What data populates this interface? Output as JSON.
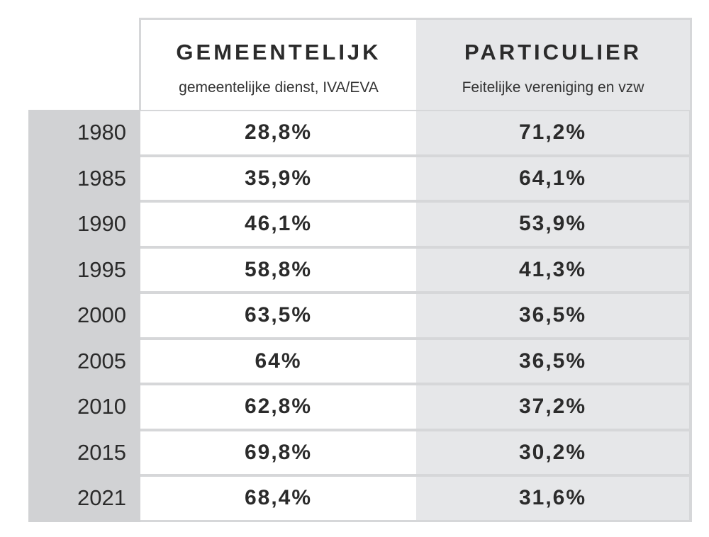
{
  "chart_data": {
    "type": "table",
    "columns": [
      {
        "title": "GEMEENTELIJK",
        "subtitle": "gemeentelijke dienst, IVA/EVA"
      },
      {
        "title": "PARTICULIER",
        "subtitle": "Feitelijke vereniging en vzw"
      }
    ],
    "rows": [
      {
        "year": "1980",
        "gemeentelijk": "28,8%",
        "particulier": "71,2%"
      },
      {
        "year": "1985",
        "gemeentelijk": "35,9%",
        "particulier": "64,1%"
      },
      {
        "year": "1990",
        "gemeentelijk": "46,1%",
        "particulier": "53,9%"
      },
      {
        "year": "1995",
        "gemeentelijk": "58,8%",
        "particulier": "41,3%"
      },
      {
        "year": "2000",
        "gemeentelijk": "63,5%",
        "particulier": "36,5%"
      },
      {
        "year": "2005",
        "gemeentelijk": "64%",
        "particulier": "36,5%"
      },
      {
        "year": "2010",
        "gemeentelijk": "62,8%",
        "particulier": "37,2%"
      },
      {
        "year": "2015",
        "gemeentelijk": "69,8%",
        "particulier": "30,2%"
      },
      {
        "year": "2021",
        "gemeentelijk": "68,4%",
        "particulier": "31,6%"
      }
    ]
  }
}
